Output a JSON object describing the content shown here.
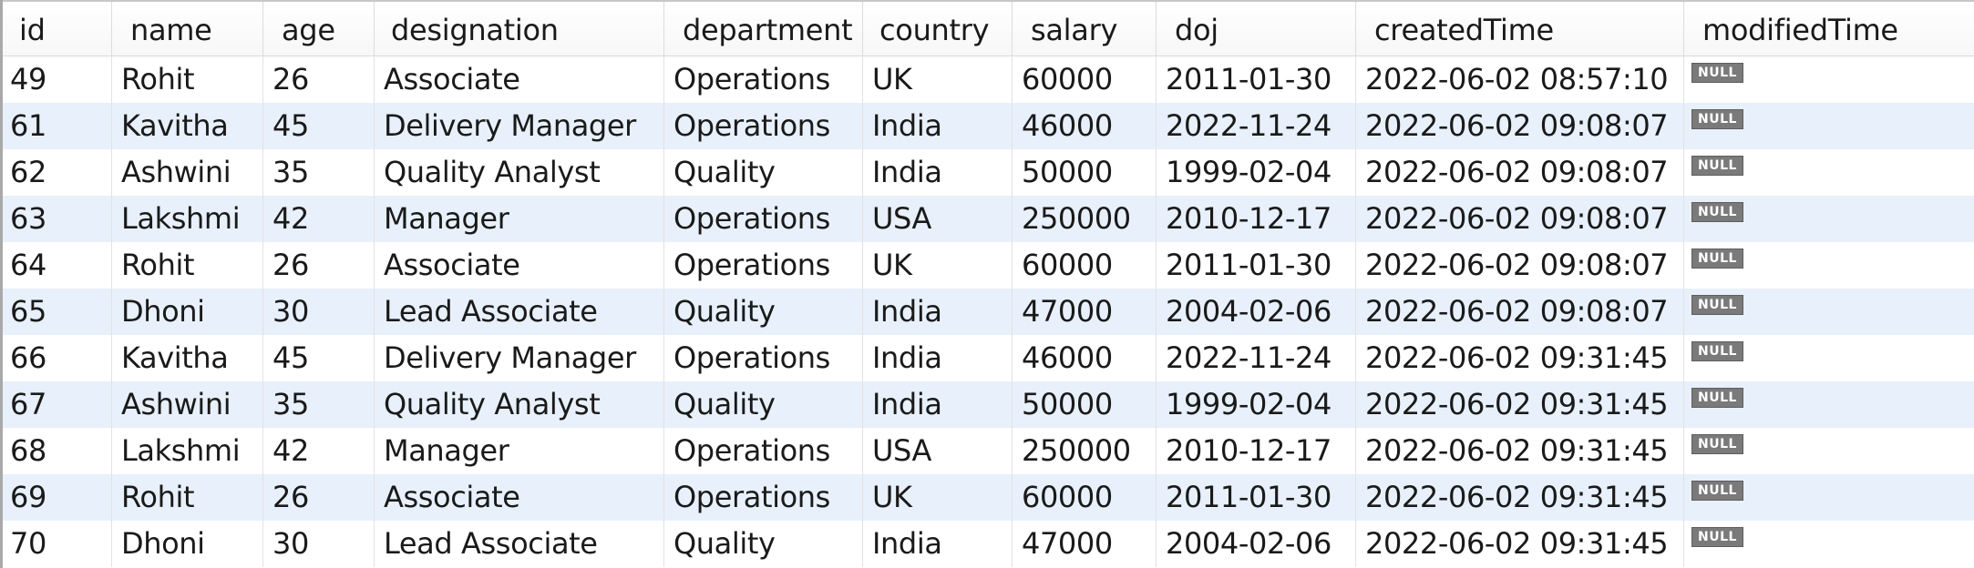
{
  "columns": [
    "id",
    "name",
    "age",
    "designation",
    "department",
    "country",
    "salary",
    "doj",
    "createdTime",
    "modifiedTime"
  ],
  "null_label": "NULL",
  "rows": [
    {
      "id": "49",
      "name": "Rohit",
      "age": "26",
      "designation": "Associate",
      "department": "Operations",
      "country": "UK",
      "salary": "60000",
      "doj": "2011-01-30",
      "createdTime": "2022-06-02 08:57:10"
    },
    {
      "id": "61",
      "name": "Kavitha",
      "age": "45",
      "designation": "Delivery Manager",
      "department": "Operations",
      "country": "India",
      "salary": "46000",
      "doj": "2022-11-24",
      "createdTime": "2022-06-02 09:08:07"
    },
    {
      "id": "62",
      "name": "Ashwini",
      "age": "35",
      "designation": "Quality Analyst",
      "department": "Quality",
      "country": "India",
      "salary": "50000",
      "doj": "1999-02-04",
      "createdTime": "2022-06-02 09:08:07"
    },
    {
      "id": "63",
      "name": "Lakshmi",
      "age": "42",
      "designation": "Manager",
      "department": "Operations",
      "country": "USA",
      "salary": "250000",
      "doj": "2010-12-17",
      "createdTime": "2022-06-02 09:08:07"
    },
    {
      "id": "64",
      "name": "Rohit",
      "age": "26",
      "designation": "Associate",
      "department": "Operations",
      "country": "UK",
      "salary": "60000",
      "doj": "2011-01-30",
      "createdTime": "2022-06-02 09:08:07"
    },
    {
      "id": "65",
      "name": "Dhoni",
      "age": "30",
      "designation": "Lead Associate",
      "department": "Quality",
      "country": "India",
      "salary": "47000",
      "doj": "2004-02-06",
      "createdTime": "2022-06-02 09:08:07"
    },
    {
      "id": "66",
      "name": "Kavitha",
      "age": "45",
      "designation": "Delivery Manager",
      "department": "Operations",
      "country": "India",
      "salary": "46000",
      "doj": "2022-11-24",
      "createdTime": "2022-06-02 09:31:45"
    },
    {
      "id": "67",
      "name": "Ashwini",
      "age": "35",
      "designation": "Quality Analyst",
      "department": "Quality",
      "country": "India",
      "salary": "50000",
      "doj": "1999-02-04",
      "createdTime": "2022-06-02 09:31:45"
    },
    {
      "id": "68",
      "name": "Lakshmi",
      "age": "42",
      "designation": "Manager",
      "department": "Operations",
      "country": "USA",
      "salary": "250000",
      "doj": "2010-12-17",
      "createdTime": "2022-06-02 09:31:45"
    },
    {
      "id": "69",
      "name": "Rohit",
      "age": "26",
      "designation": "Associate",
      "department": "Operations",
      "country": "UK",
      "salary": "60000",
      "doj": "2011-01-30",
      "createdTime": "2022-06-02 09:31:45"
    },
    {
      "id": "70",
      "name": "Dhoni",
      "age": "30",
      "designation": "Lead Associate",
      "department": "Quality",
      "country": "India",
      "salary": "47000",
      "doj": "2004-02-06",
      "createdTime": "2022-06-02 09:31:45"
    }
  ],
  "colors": {
    "alt_row": "#e8f0fb",
    "null_badge": "#7a7a7a",
    "grid_line": "#e2e2e2"
  }
}
